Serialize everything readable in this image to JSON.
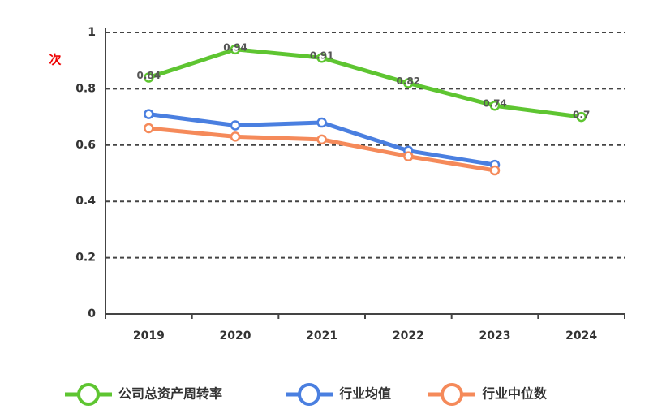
{
  "chart_data": {
    "type": "line",
    "unit": "次",
    "categories": [
      "2019",
      "2020",
      "2021",
      "2022",
      "2023",
      "2024"
    ],
    "series": [
      {
        "name": "公司总资产周转率",
        "color": "#5ec531",
        "values": [
          0.84,
          0.94,
          0.91,
          0.82,
          0.74,
          0.7
        ]
      },
      {
        "name": "行业均值",
        "color": "#4a7fe0",
        "values": [
          0.71,
          0.67,
          0.68,
          0.58,
          0.53,
          null
        ]
      },
      {
        "name": "行业中位数",
        "color": "#f58a5a",
        "values": [
          0.66,
          0.63,
          0.62,
          0.56,
          0.51,
          null
        ]
      }
    ],
    "data_labels_series": 0,
    "ylim": [
      0,
      1
    ],
    "yticks": [
      0,
      0.2,
      0.4,
      0.6,
      0.8,
      1
    ],
    "grid": true
  }
}
